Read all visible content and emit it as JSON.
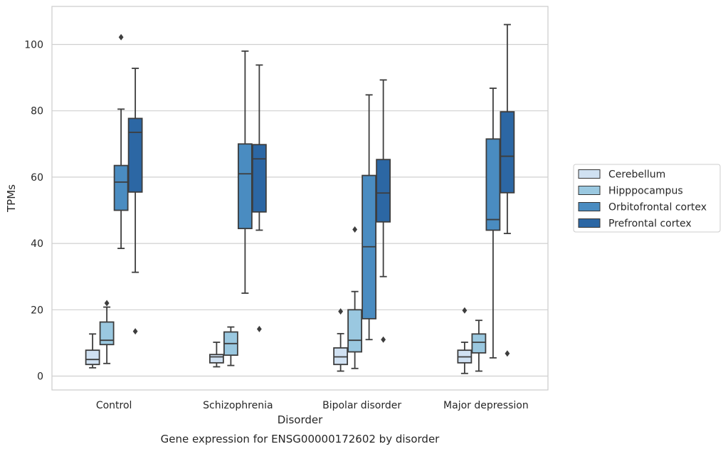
{
  "chart_data": {
    "type": "box",
    "caption": "Gene expression for ENSG00000172602 by disorder",
    "xlabel": "Disorder",
    "ylabel": "TPMs",
    "ylim": [
      -4,
      112
    ],
    "yticks": [
      0,
      20,
      40,
      60,
      80,
      100
    ],
    "grid": true,
    "legend_position": "right",
    "categories": [
      "Control",
      "Schizophrenia",
      "Bipolar disorder",
      "Major depression"
    ],
    "series": [
      {
        "name": "Cerebellum",
        "color": "#d0e1f2",
        "boxes": [
          {
            "whisker_low": 2.5,
            "q1": 3.5,
            "median": 5.0,
            "q3": 7.8,
            "whisker_high": 12.7,
            "outliers": []
          },
          {
            "whisker_low": 2.8,
            "q1": 4.0,
            "median": 5.8,
            "q3": 6.5,
            "whisker_high": 10.2,
            "outliers": []
          },
          {
            "whisker_low": 1.5,
            "q1": 3.5,
            "median": 5.8,
            "q3": 8.5,
            "whisker_high": 12.8,
            "outliers": [
              19.5
            ]
          },
          {
            "whisker_low": 0.8,
            "q1": 4.0,
            "median": 5.8,
            "q3": 7.8,
            "whisker_high": 10.2,
            "outliers": [
              19.8
            ]
          }
        ]
      },
      {
        "name": "Hipppocampus",
        "color": "#9ac8e0",
        "boxes": [
          {
            "whisker_low": 3.8,
            "q1": 9.5,
            "median": 10.8,
            "q3": 16.3,
            "whisker_high": 20.8,
            "outliers": [
              22.0
            ]
          },
          {
            "whisker_low": 3.2,
            "q1": 6.3,
            "median": 9.8,
            "q3": 13.3,
            "whisker_high": 14.8,
            "outliers": []
          },
          {
            "whisker_low": 2.3,
            "q1": 7.3,
            "median": 10.8,
            "q3": 20.0,
            "whisker_high": 25.5,
            "outliers": [
              44.2
            ]
          },
          {
            "whisker_low": 1.5,
            "q1": 7.0,
            "median": 10.2,
            "q3": 12.7,
            "whisker_high": 16.8,
            "outliers": []
          }
        ]
      },
      {
        "name": "Orbitofrontal cortex",
        "color": "#4a8cc1",
        "boxes": [
          {
            "whisker_low": 38.5,
            "q1": 50.0,
            "median": 58.5,
            "q3": 63.5,
            "whisker_high": 80.5,
            "outliers": [
              102.2
            ]
          },
          {
            "whisker_low": 25.0,
            "q1": 44.5,
            "median": 61.0,
            "q3": 70.0,
            "whisker_high": 98.0,
            "outliers": []
          },
          {
            "whisker_low": 11.0,
            "q1": 17.3,
            "median": 39.0,
            "q3": 60.5,
            "whisker_high": 84.8,
            "outliers": []
          },
          {
            "whisker_low": 5.5,
            "q1": 44.0,
            "median": 47.2,
            "q3": 71.5,
            "whisker_high": 86.8,
            "outliers": []
          }
        ]
      },
      {
        "name": "Prefrontal cortex",
        "color": "#2c67a4",
        "boxes": [
          {
            "whisker_low": 31.3,
            "q1": 55.5,
            "median": 73.5,
            "q3": 77.7,
            "whisker_high": 92.8,
            "outliers": [
              13.5
            ]
          },
          {
            "whisker_low": 44.0,
            "q1": 49.5,
            "median": 65.5,
            "q3": 69.8,
            "whisker_high": 93.8,
            "outliers": [
              14.2
            ]
          },
          {
            "whisker_low": 30.0,
            "q1": 46.5,
            "median": 55.2,
            "q3": 65.3,
            "whisker_high": 89.3,
            "outliers": [
              11.0
            ]
          },
          {
            "whisker_low": 43.0,
            "q1": 55.3,
            "median": 66.3,
            "q3": 79.7,
            "whisker_high": 106.0,
            "outliers": [
              6.8
            ]
          }
        ]
      }
    ]
  }
}
